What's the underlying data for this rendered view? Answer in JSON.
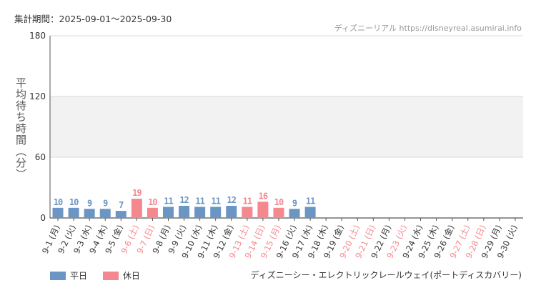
{
  "header": {
    "period": "集計期間：2025-09-01～2025-09-30",
    "credit": "ディズニーリアル https://disneyreal.asumirai.info"
  },
  "footer": {
    "attraction": "ディズニーシー・エレクトリックレールウェイ(ポートディスカバリー)"
  },
  "colors": {
    "weekday": "#6B96C3",
    "holiday": "#F4888E",
    "band": "#F2F2F2"
  },
  "chart_data": {
    "type": "bar",
    "ylabel": "平均待ち時間（分）",
    "ylim": [
      0,
      180
    ],
    "yticks": [
      0,
      60,
      120,
      180
    ],
    "grid": true,
    "legend_position": "bottom-left",
    "legend": [
      {
        "label": "平日",
        "kind": "weekday"
      },
      {
        "label": "休日",
        "kind": "holiday"
      }
    ],
    "categories": [
      "9-1 (月)",
      "9-2 (火)",
      "9-3 (水)",
      "9-4 (木)",
      "9-5 (金)",
      "9-6 (土)",
      "9-7 (日)",
      "9-8 (月)",
      "9-9 (火)",
      "9-10 (水)",
      "9-11 (木)",
      "9-12 (金)",
      "9-13 (土)",
      "9-14 (日)",
      "9-15 (月)",
      "9-16 (火)",
      "9-17 (水)",
      "9-18 (木)",
      "9-19 (金)",
      "9-20 (土)",
      "9-21 (日)",
      "9-22 (月)",
      "9-23 (火)",
      "9-24 (水)",
      "9-25 (木)",
      "9-26 (金)",
      "9-27 (土)",
      "9-28 (日)",
      "9-29 (月)",
      "9-30 (火)"
    ],
    "holiday": [
      false,
      false,
      false,
      false,
      false,
      true,
      true,
      false,
      false,
      false,
      false,
      false,
      true,
      true,
      true,
      false,
      false,
      false,
      false,
      true,
      true,
      false,
      true,
      false,
      false,
      false,
      true,
      true,
      false,
      false
    ],
    "values": [
      10,
      10,
      9,
      9,
      7,
      19,
      10,
      11,
      12,
      11,
      11,
      12,
      11,
      16,
      10,
      9,
      11,
      null,
      null,
      null,
      null,
      null,
      null,
      null,
      null,
      null,
      null,
      null,
      null,
      null
    ]
  }
}
